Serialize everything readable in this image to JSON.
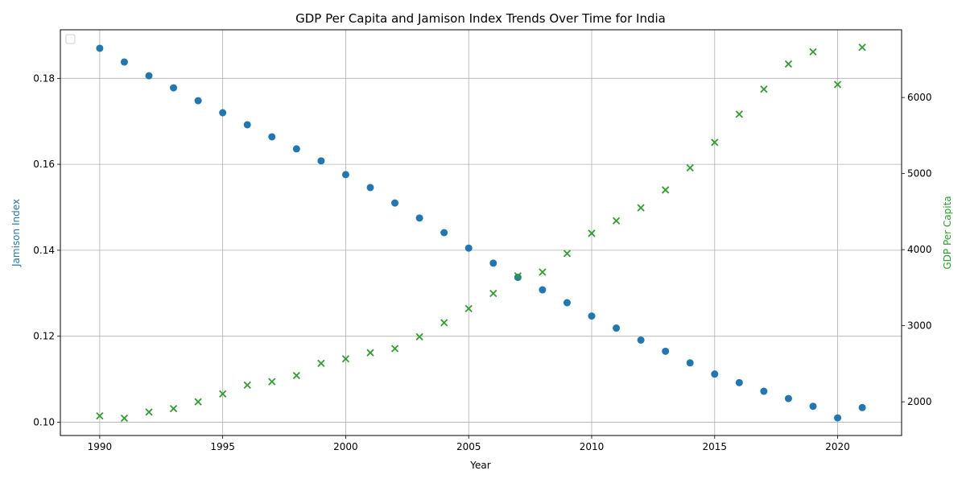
{
  "chart_data": {
    "type": "scatter",
    "title": "GDP Per Capita and Jamison Index Trends Over Time for India",
    "xlabel": "Year",
    "ylabel_left": "Jamison Index",
    "ylabel_right": "GDP Per Capita",
    "xlim": [
      1988.4,
      2022.6
    ],
    "ylim_left": [
      0.0969,
      0.1913
    ],
    "ylim_right": [
      1557,
      6890
    ],
    "x_ticks": [
      1990,
      1995,
      2000,
      2005,
      2010,
      2015,
      2020
    ],
    "y_ticks_left": [
      0.1,
      0.12,
      0.14,
      0.16,
      0.18
    ],
    "y_ticks_right": [
      2000,
      3000,
      4000,
      5000,
      6000
    ],
    "grid": true,
    "legend": "top-left (empty)",
    "series": [
      {
        "name": "Jamison Index",
        "axis": "left",
        "marker": "circle",
        "color": "#1f77b4",
        "x": [
          1990,
          1991,
          1992,
          1993,
          1994,
          1995,
          1996,
          1997,
          1998,
          1999,
          2000,
          2001,
          2002,
          2003,
          2004,
          2005,
          2006,
          2007,
          2008,
          2009,
          2010,
          2011,
          2012,
          2013,
          2014,
          2015,
          2016,
          2017,
          2018,
          2019,
          2020,
          2021
        ],
        "y": [
          0.187,
          0.1838,
          0.1806,
          0.1778,
          0.1748,
          0.172,
          0.1692,
          0.1664,
          0.1636,
          0.1608,
          0.1576,
          0.1546,
          0.151,
          0.1475,
          0.1441,
          0.1405,
          0.137,
          0.1337,
          0.1308,
          0.1278,
          0.1247,
          0.1219,
          0.1191,
          0.1165,
          0.1138,
          0.1112,
          0.1092,
          0.1072,
          0.1055,
          0.1037,
          0.101,
          0.1034
        ]
      },
      {
        "name": "GDP Per Capita",
        "axis": "right",
        "marker": "x",
        "color": "#2ca02c",
        "x": [
          1990,
          1991,
          1992,
          1993,
          1994,
          1995,
          1996,
          1997,
          1998,
          1999,
          2000,
          2001,
          2002,
          2003,
          2004,
          2005,
          2006,
          2007,
          2008,
          2009,
          2010,
          2011,
          2012,
          2013,
          2014,
          2015,
          2016,
          2017,
          2018,
          2019,
          2020,
          2021
        ],
        "y": [
          1815,
          1785,
          1865,
          1910,
          2000,
          2105,
          2220,
          2265,
          2345,
          2505,
          2565,
          2645,
          2700,
          2855,
          3040,
          3225,
          3425,
          3655,
          3705,
          3950,
          4215,
          4380,
          4550,
          4785,
          5075,
          5410,
          5780,
          6110,
          6440,
          6600,
          6170,
          6660
        ]
      }
    ]
  },
  "colors": {
    "left_axis_label": "#1f77b4",
    "right_axis_label": "#2ca02c",
    "grid": "#b0b0b0"
  }
}
